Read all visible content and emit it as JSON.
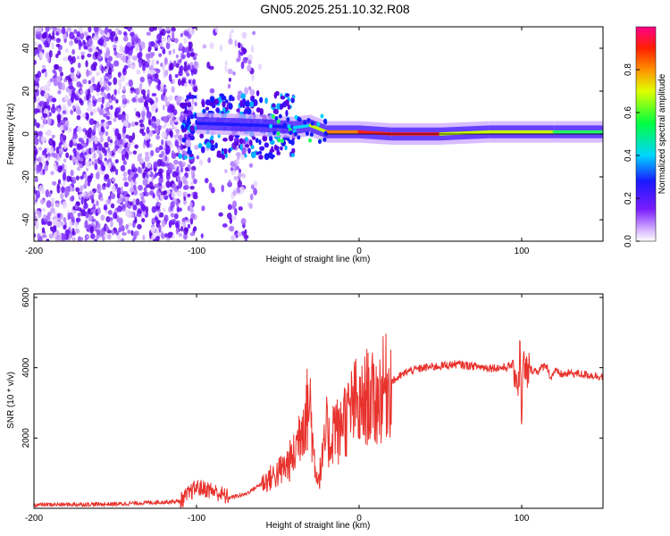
{
  "title": "GN05.2025.251.10.32.R08",
  "chart_data": [
    {
      "type": "heatmap",
      "xlabel": "Height of straight line (km)",
      "ylabel": "Frequency (Hz)",
      "xlim": [
        -200,
        150
      ],
      "ylim": [
        -50,
        50
      ],
      "xticks": [
        -200,
        -100,
        0,
        100
      ],
      "yticks": [
        -40,
        -20,
        0,
        20,
        40
      ],
      "colorbar": {
        "label": "Normalized spectral amplitude",
        "range": [
          0,
          1
        ],
        "ticks": [
          "0.0",
          "0.2",
          "0.4",
          "0.6",
          "0.8"
        ],
        "colors": [
          "#ffffff",
          "#c9a2ff",
          "#6a00ff",
          "#1a1aff",
          "#00e5e5",
          "#00ff00",
          "#ffff00",
          "#ff8000",
          "#ff0000",
          "#ff00a0"
        ]
      },
      "ridge": [
        {
          "x": -100,
          "f": 5,
          "amp": 0.25
        },
        {
          "x": -60,
          "f": 4,
          "amp": 0.3
        },
        {
          "x": -40,
          "f": 3,
          "amp": 0.45
        },
        {
          "x": -30,
          "f": 4,
          "amp": 0.6
        },
        {
          "x": -20,
          "f": 1,
          "amp": 0.85
        },
        {
          "x": 0,
          "f": 1,
          "amp": 0.95
        },
        {
          "x": 20,
          "f": 0,
          "amp": 0.95
        },
        {
          "x": 50,
          "f": 0,
          "amp": 0.9
        },
        {
          "x": 80,
          "f": 1,
          "amp": 0.7
        },
        {
          "x": 100,
          "f": 1,
          "amp": 0.8
        },
        {
          "x": 120,
          "f": 1,
          "amp": 0.7
        },
        {
          "x": 150,
          "f": 1,
          "amp": 0.6
        }
      ]
    },
    {
      "type": "line",
      "xlabel": "Height of straight line (km)",
      "ylabel": "SNR (10 * v/v)",
      "xlim": [
        -200,
        150
      ],
      "ylim": [
        0,
        6100
      ],
      "xticks": [
        -200,
        -100,
        0,
        100
      ],
      "yticks": [
        2000,
        4000,
        6000
      ],
      "color": "#e8322d",
      "x": [
        -200,
        -150,
        -110,
        -100,
        -90,
        -80,
        -70,
        -60,
        -50,
        -45,
        -40,
        -35,
        -30,
        -28,
        -25,
        -22,
        -20,
        -18,
        -15,
        -12,
        -10,
        -8,
        -5,
        -2,
        0,
        5,
        10,
        15,
        20,
        30,
        40,
        50,
        60,
        70,
        80,
        90,
        95,
        98,
        99,
        100,
        101,
        102,
        105,
        110,
        115,
        118,
        120,
        125,
        130,
        140,
        150
      ],
      "values": [
        100,
        120,
        200,
        600,
        500,
        300,
        400,
        700,
        1000,
        1200,
        1500,
        2500,
        3000,
        1500,
        800,
        1500,
        2200,
        1800,
        2500,
        2000,
        2800,
        2500,
        2800,
        3000,
        2700,
        3200,
        3000,
        3400,
        3600,
        3900,
        4000,
        4050,
        4100,
        4050,
        4000,
        4000,
        4100,
        3500,
        4500,
        2500,
        4200,
        3800,
        3950,
        3900,
        4100,
        3700,
        3900,
        3800,
        3850,
        3800,
        3750
      ]
    }
  ]
}
